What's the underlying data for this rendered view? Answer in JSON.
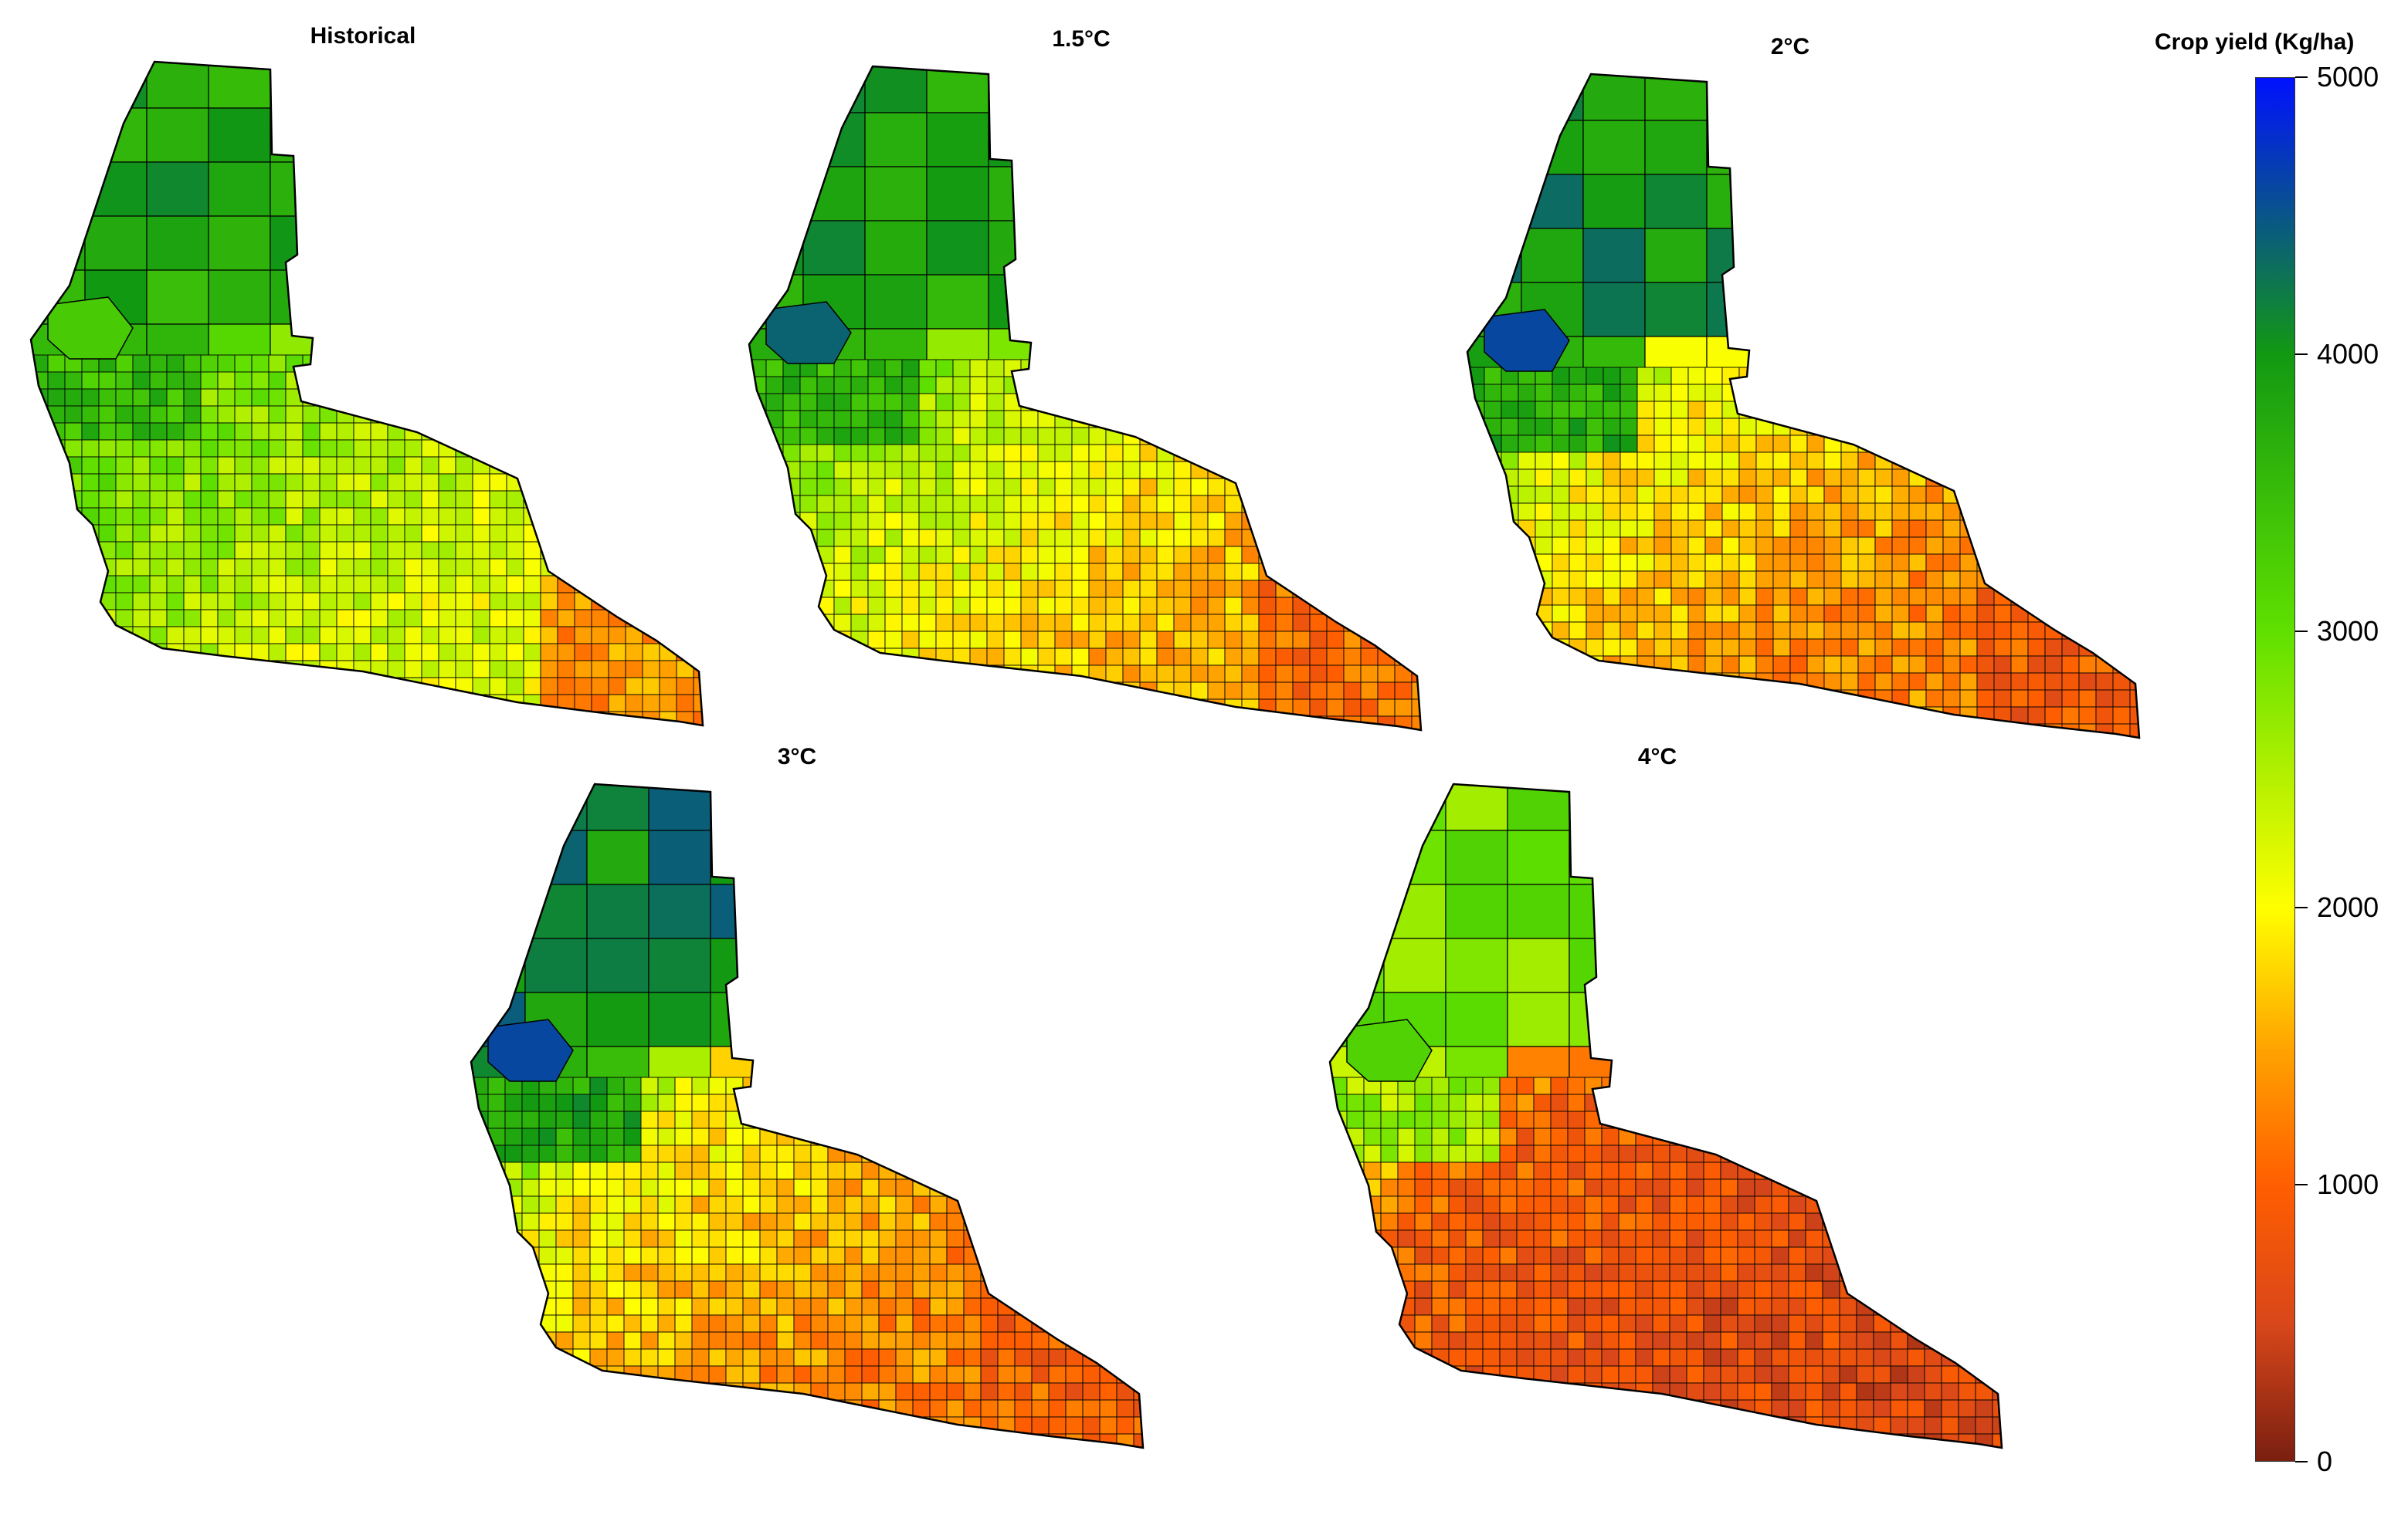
{
  "legend": {
    "title": "Crop yield (Kg/ha)",
    "min": 0,
    "max": 5000,
    "ticks": [
      "0",
      "1000",
      "2000",
      "3000",
      "4000",
      "5000"
    ],
    "colormap": [
      {
        "value": 0,
        "color": "#7a1f10"
      },
      {
        "value": 500,
        "color": "#d9471a"
      },
      {
        "value": 1000,
        "color": "#ff5e00"
      },
      {
        "value": 1500,
        "color": "#ffa500"
      },
      {
        "value": 2000,
        "color": "#ffff00"
      },
      {
        "value": 3000,
        "color": "#5fe000"
      },
      {
        "value": 4000,
        "color": "#129912"
      },
      {
        "value": 5000,
        "color": "#0011ff"
      }
    ]
  },
  "panels": [
    {
      "title": "Historical",
      "north": 3800,
      "mid": 2800,
      "south": 2200,
      "southeast": 1400,
      "lake": 3300
    },
    {
      "title": "1.5°C",
      "north": 3900,
      "mid": 2500,
      "south": 1600,
      "southeast": 1100,
      "lake": 4400
    },
    {
      "title": "2°C",
      "north": 4000,
      "mid": 2000,
      "south": 1300,
      "southeast": 900,
      "lake": 4600
    },
    {
      "title": "3°C",
      "north": 4100,
      "mid": 2000,
      "south": 1300,
      "southeast": 1000,
      "lake": 4600
    },
    {
      "title": "4°C",
      "north": 2900,
      "mid": 1000,
      "south": 700,
      "southeast": 600,
      "lake": 3200
    }
  ]
}
